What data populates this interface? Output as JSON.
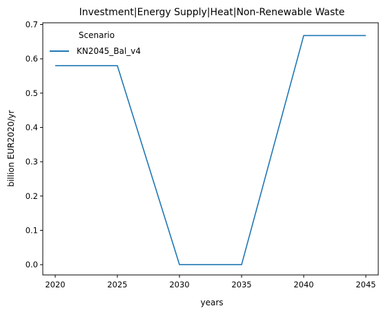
{
  "chart_data": {
    "type": "line",
    "title": "Investment|Energy Supply|Heat|Non-Renewable Waste",
    "xlabel": "years",
    "ylabel": "billion EUR2020/yr",
    "x": [
      2020,
      2025,
      2030,
      2035,
      2040,
      2045
    ],
    "xlim": [
      2019,
      2046
    ],
    "ylim": [
      -0.03,
      0.705
    ],
    "xticks": [
      "2020",
      "2025",
      "2030",
      "2035",
      "2040",
      "2045"
    ],
    "yticks": [
      "0.0",
      "0.1",
      "0.2",
      "0.3",
      "0.4",
      "0.5",
      "0.6",
      "0.7"
    ],
    "grid": false,
    "legend": {
      "title": "Scenario",
      "placement": "top-left"
    },
    "series": [
      {
        "name": "KN2045_Bal_v4",
        "color": "#1f77b4",
        "values": [
          0.58,
          0.58,
          0.0,
          0.0,
          0.668,
          0.668
        ]
      }
    ]
  }
}
